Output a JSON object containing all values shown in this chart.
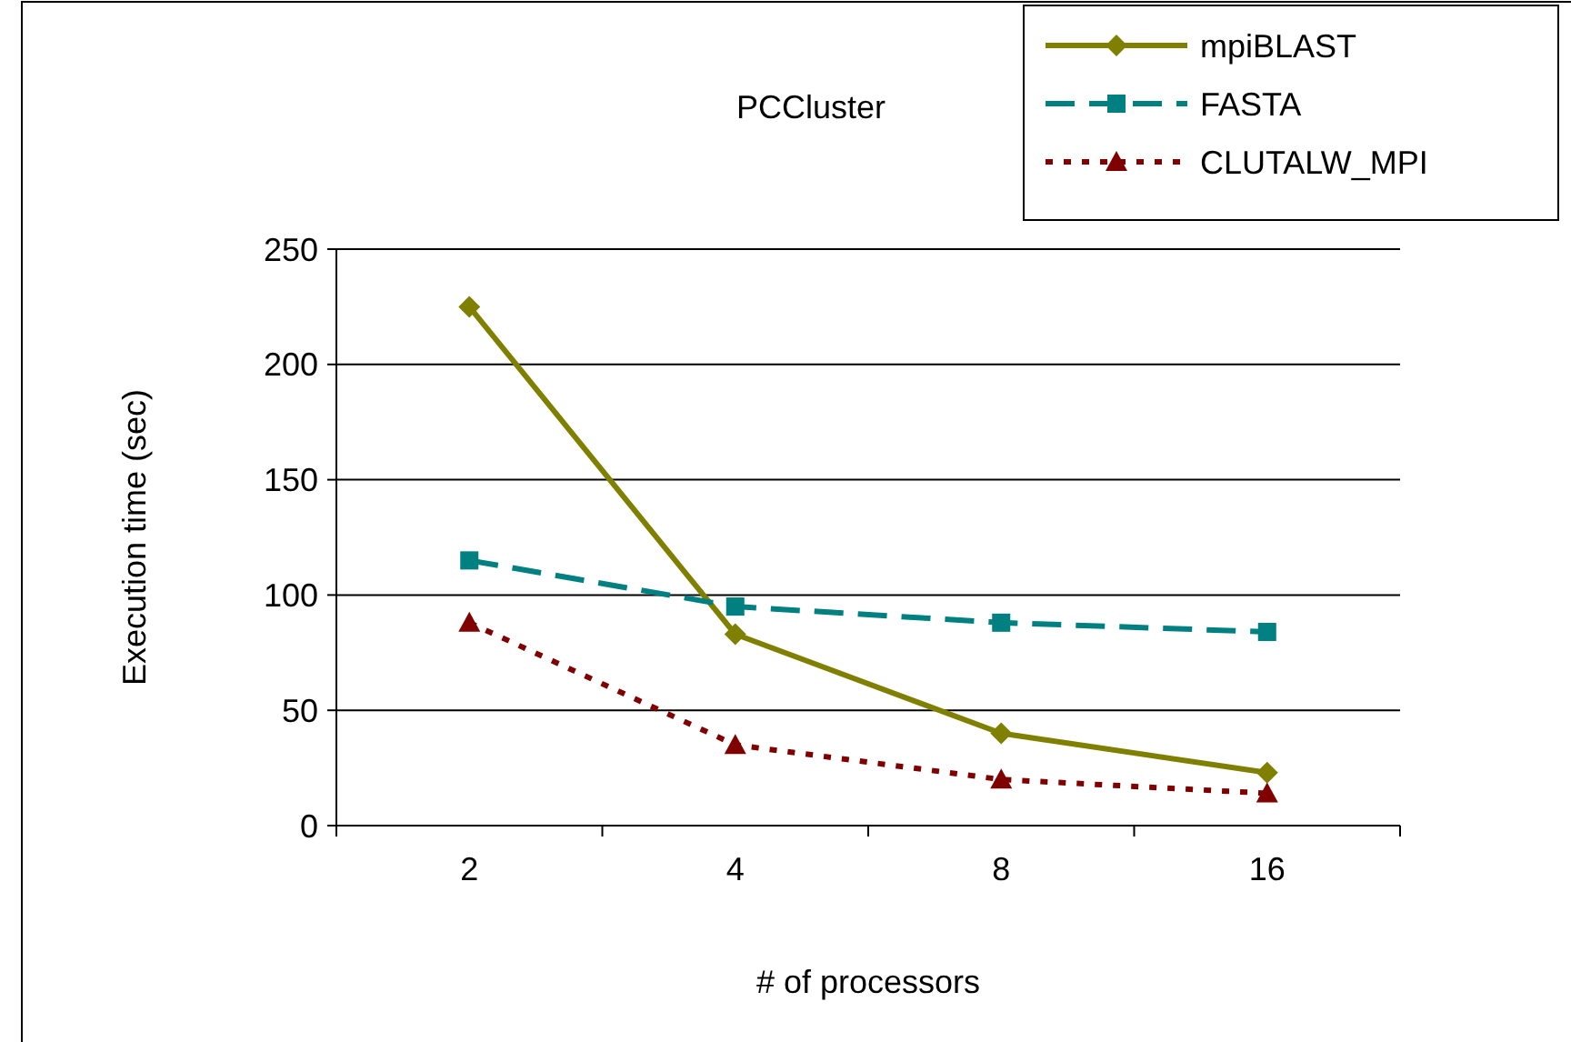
{
  "chart_data": {
    "type": "line",
    "title": "PCCluster",
    "xlabel": "# of processors",
    "ylabel": "Execution time (sec)",
    "categories": [
      "2",
      "4",
      "8",
      "16"
    ],
    "series": [
      {
        "name": "mpiBLAST",
        "color": "#808000",
        "values": [
          225,
          83,
          40,
          23
        ],
        "marker": "diamond",
        "line_style": "solid"
      },
      {
        "name": "FASTA",
        "color": "#008080",
        "values": [
          115,
          95,
          88,
          84
        ],
        "marker": "square",
        "line_style": "dashed"
      },
      {
        "name": "CLUTALW_MPI",
        "color": "#800000",
        "values": [
          88,
          35,
          20,
          14
        ],
        "marker": "triangle",
        "line_style": "dotted"
      }
    ],
    "ylim": [
      0,
      250
    ],
    "yticks": [
      0,
      50,
      100,
      150,
      200,
      250
    ],
    "grid": "y",
    "legend": "top right"
  }
}
